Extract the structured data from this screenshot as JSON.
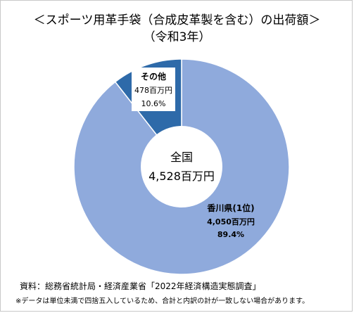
{
  "chart_data": {
    "type": "pie",
    "title_line1": "＜スポーツ用革手袋（合成皮革製を含む）の出荷額＞",
    "title_line2": "（令和3年）",
    "center_label": "全国",
    "center_value": "4,528百万円",
    "slices": [
      {
        "name": "香川県(1位)",
        "value_label": "4,050百万円",
        "percent_label": "89.4%",
        "value": 4050,
        "percent": 89.4,
        "color": "#8faadc"
      },
      {
        "name": "その他",
        "value_label": "478百万円",
        "percent_label": "10.6%",
        "value": 478,
        "percent": 10.6,
        "color": "#2e6aa9"
      }
    ]
  },
  "footer": {
    "source": "資料：総務省統計局・経済産業省「2022年経済構造実態調査」",
    "note": "※データは単位未満で四捨五入しているため、合計と内訳の計が一致しない場合があります。"
  }
}
